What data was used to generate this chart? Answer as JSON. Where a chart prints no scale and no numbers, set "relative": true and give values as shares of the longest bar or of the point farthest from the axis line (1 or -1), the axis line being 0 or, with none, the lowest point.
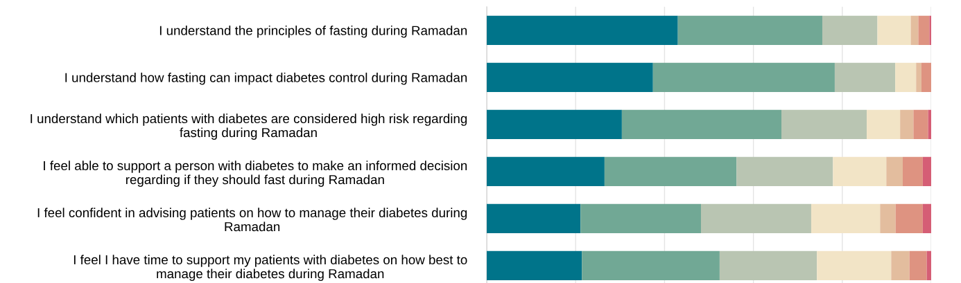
{
  "chart_data": {
    "type": "bar",
    "orientation": "horizontal",
    "stacked": true,
    "relative": true,
    "grid": "x",
    "categories": [
      "I understand the principles of fasting during Ramadan",
      "I understand how fasting can impact diabetes control during Ramadan",
      "I understand which patients with diabetes are considered high risk regarding\nfasting during Ramadan",
      "I feel able to support a person with diabetes to make an informed decision\nregarding if they should fast during Ramadan",
      "I feel confident in advising patients on how to manage their diabetes during\nRamadan",
      "I feel I have time to support my patients with diabetes on how best to\nmanage their diabetes during Ramadan"
    ],
    "series": [
      {
        "color": "#00748a",
        "values": [
          0.43,
          0.374,
          0.304,
          0.265,
          0.211,
          0.214
        ]
      },
      {
        "color": "#71a895",
        "values": [
          0.325,
          0.409,
          0.359,
          0.297,
          0.271,
          0.31
        ]
      },
      {
        "color": "#b9c5b2",
        "values": [
          0.124,
          0.136,
          0.192,
          0.217,
          0.248,
          0.219
        ]
      },
      {
        "color": "#f2e4c6",
        "values": [
          0.075,
          0.047,
          0.075,
          0.12,
          0.155,
          0.167
        ]
      },
      {
        "color": "#e3bd9e",
        "values": [
          0.017,
          0.012,
          0.03,
          0.037,
          0.035,
          0.041
        ]
      },
      {
        "color": "#de9381",
        "values": [
          0.025,
          0.022,
          0.033,
          0.045,
          0.061,
          0.039
        ]
      },
      {
        "color": "#d55e75",
        "values": [
          0.004,
          0.0,
          0.007,
          0.019,
          0.019,
          0.01
        ]
      }
    ]
  }
}
